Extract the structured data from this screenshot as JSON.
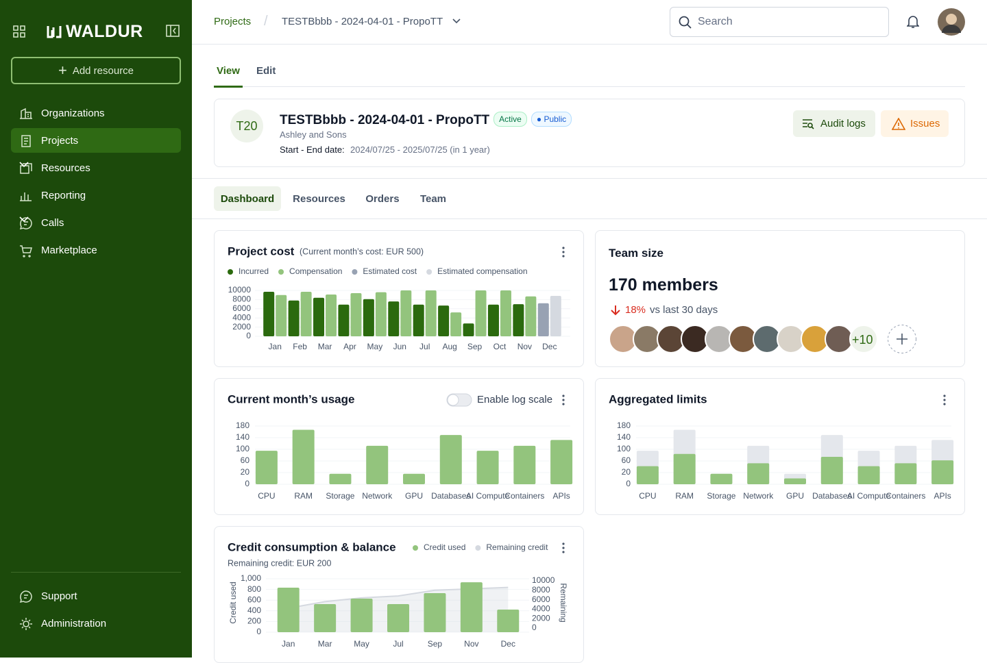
{
  "sidebar": {
    "brand": "WALDUR",
    "add_resource": "Add resource",
    "nav": [
      "Organizations",
      "Projects",
      "Resources",
      "Reporting",
      "Calls",
      "Marketplace"
    ],
    "footer": [
      "Support",
      "Administration"
    ]
  },
  "header": {
    "breadcrumb": [
      "Projects",
      "TESTBbbb - 2024-04-01 - PropoTT"
    ],
    "search": "Search"
  },
  "tabs": [
    "View",
    "Edit"
  ],
  "project": {
    "avatar": "T20",
    "name": "TESTBbbb - 2024-04-01 - PropoTT",
    "badges": [
      "Active",
      "Public"
    ],
    "organization": "Ashley and Sons",
    "date_label": "Start - End date:",
    "date": "2024/07/25 - 2025/07/25 (in 1 year)",
    "buttons": [
      "Audit logs",
      "Issues"
    ]
  },
  "subtabs": [
    "Dashboard",
    "Resources",
    "Orders",
    "Team"
  ],
  "team": {
    "title": "Team size",
    "count": "170 members",
    "change": "18%",
    "change_label": "vs last 30 days",
    "more": "+10"
  },
  "chart_data": [
    {
      "type": "grouped_bar",
      "title": "Project cost",
      "subtitle": "(Current month’s cost: EUR 500)",
      "categories": [
        "Jan",
        "Feb",
        "Mar",
        "Apr",
        "May",
        "Jun",
        "Jul",
        "Aug",
        "Sep",
        "Oct",
        "Nov",
        "Dec"
      ],
      "series": [
        {
          "name": "Incurred",
          "color": "#2b6a0e",
          "values": [
            9700,
            7800,
            8400,
            6900,
            8100,
            7600,
            6900,
            6700,
            2800,
            6900,
            7000,
            null
          ]
        },
        {
          "name": "Compensation",
          "color": "#93c47d",
          "values": [
            9000,
            9700,
            9100,
            9400,
            9600,
            10000,
            10000,
            5200,
            10000,
            10000,
            8700,
            null
          ]
        },
        {
          "name": "Estimated cost",
          "color": "#98a2b3",
          "values": [
            null,
            null,
            null,
            null,
            null,
            null,
            null,
            null,
            null,
            null,
            null,
            7200
          ]
        },
        {
          "name": "Estimated compensation",
          "color": "#d5d9e0",
          "values": [
            null,
            null,
            null,
            null,
            null,
            null,
            null,
            null,
            null,
            null,
            null,
            8800
          ]
        }
      ],
      "ylim": [
        0,
        10000
      ],
      "yticks": [
        0,
        2000,
        4000,
        6000,
        8000,
        10000
      ],
      "grid": true
    },
    {
      "type": "bar",
      "title": "Current month’s usage",
      "toggle_label": "Enable log scale",
      "log_scale": false,
      "categories": [
        "CPU",
        "RAM",
        "Storage",
        "Network",
        "GPU",
        "Databases",
        "AI Compute",
        "Containers",
        "APIs"
      ],
      "values": [
        95,
        167,
        18,
        112,
        18,
        149,
        95,
        112,
        132
      ],
      "color": "#93c47d",
      "ylim": [
        0,
        180
      ],
      "yticks": [
        0,
        20,
        60,
        100,
        140,
        180
      ],
      "grid": true
    },
    {
      "type": "overlap_bar",
      "title": "Aggregated limits",
      "categories": [
        "CPU",
        "RAM",
        "Storage",
        "Network",
        "GPU",
        "Databases",
        "AI Compute",
        "Containers",
        "APIs"
      ],
      "series": [
        {
          "color": "#e4e7ec",
          "values": [
            95,
            167,
            18,
            112,
            18,
            149,
            95,
            112,
            132
          ]
        },
        {
          "color": "#93c47d",
          "values": [
            42,
            84,
            18,
            52,
            10,
            74,
            42,
            52,
            62
          ]
        }
      ],
      "ylim": [
        0,
        180
      ],
      "yticks": [
        0,
        20,
        60,
        100,
        140,
        180
      ],
      "grid": true
    },
    {
      "type": "bar_line",
      "title": "Credit consumption & balance",
      "subtitle": "Remaining credit: EUR 200",
      "ylabel": "Credit used",
      "y2label": "Remaining",
      "categories": [
        "Jan",
        "Mar",
        "May",
        "Jul",
        "Sep",
        "Nov",
        "Dec"
      ],
      "series": [
        {
          "name": "Credit used",
          "color": "#93c47d",
          "values": [
            833,
            525,
            628,
            525,
            730,
            935,
            423
          ]
        },
        {
          "name": "Remaining credit",
          "color": "#d5d9e0",
          "axis": "y2",
          "values": [
            4200,
            5600,
            6400,
            6800,
            8000,
            8300,
            8600
          ]
        }
      ],
      "ylim": [
        0,
        1000
      ],
      "yticks": [
        0,
        200,
        400,
        600,
        800,
        {
          "value": 1000,
          "label": "1,000"
        }
      ],
      "y2lim": [
        0,
        10000
      ],
      "y2ticks": [
        0,
        2000,
        4000,
        6000,
        8000,
        10000
      ],
      "grid": true
    }
  ]
}
